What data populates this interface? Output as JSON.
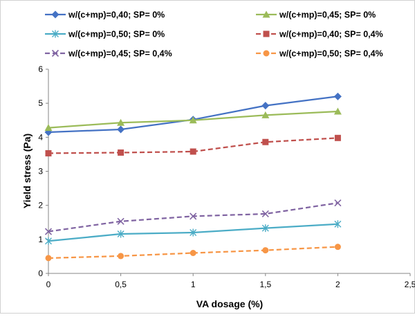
{
  "chart_data": {
    "type": "line",
    "title": "",
    "xlabel": "VA dosage (%)",
    "ylabel": "Yield stress (Pa)",
    "xlim": [
      0,
      2.5
    ],
    "ylim": [
      0,
      6
    ],
    "x_ticks": [
      "0",
      "0,5",
      "1",
      "1,5",
      "2",
      "2,5"
    ],
    "y_ticks": [
      "0",
      "1",
      "2",
      "3",
      "4",
      "5",
      "6"
    ],
    "grid": false,
    "legend_position": "top",
    "x": [
      0,
      0.5,
      1,
      1.5,
      2
    ],
    "series": [
      {
        "name": "w/(c+mp)=0,40; SP= 0%",
        "values": [
          4.15,
          4.23,
          4.52,
          4.93,
          5.2
        ],
        "color": "#4472C4",
        "marker": "diamond",
        "dashed": false
      },
      {
        "name": "w/(c+mp)=0,45; SP= 0%",
        "values": [
          4.28,
          4.43,
          4.5,
          4.65,
          4.76
        ],
        "color": "#9BBB59",
        "marker": "triangle",
        "dashed": false
      },
      {
        "name": "w/(c+mp)=0,50; SP= 0%",
        "values": [
          0.95,
          1.16,
          1.2,
          1.33,
          1.45
        ],
        "color": "#4BACC6",
        "marker": "asterisk",
        "dashed": false
      },
      {
        "name": "w/(c+mp)=0,40; SP= 0,4%",
        "values": [
          3.53,
          3.55,
          3.58,
          3.86,
          3.98
        ],
        "color": "#C0504D",
        "marker": "square",
        "dashed": true
      },
      {
        "name": "w/(c+mp)=0,45; SP= 0,4%",
        "values": [
          1.23,
          1.53,
          1.68,
          1.75,
          2.07
        ],
        "color": "#8064A2",
        "marker": "x",
        "dashed": true
      },
      {
        "name": "w/(c+mp)=0,50; SP= 0,4%",
        "values": [
          0.45,
          0.51,
          0.6,
          0.68,
          0.78
        ],
        "color": "#F79646",
        "marker": "circle",
        "dashed": true
      }
    ]
  }
}
